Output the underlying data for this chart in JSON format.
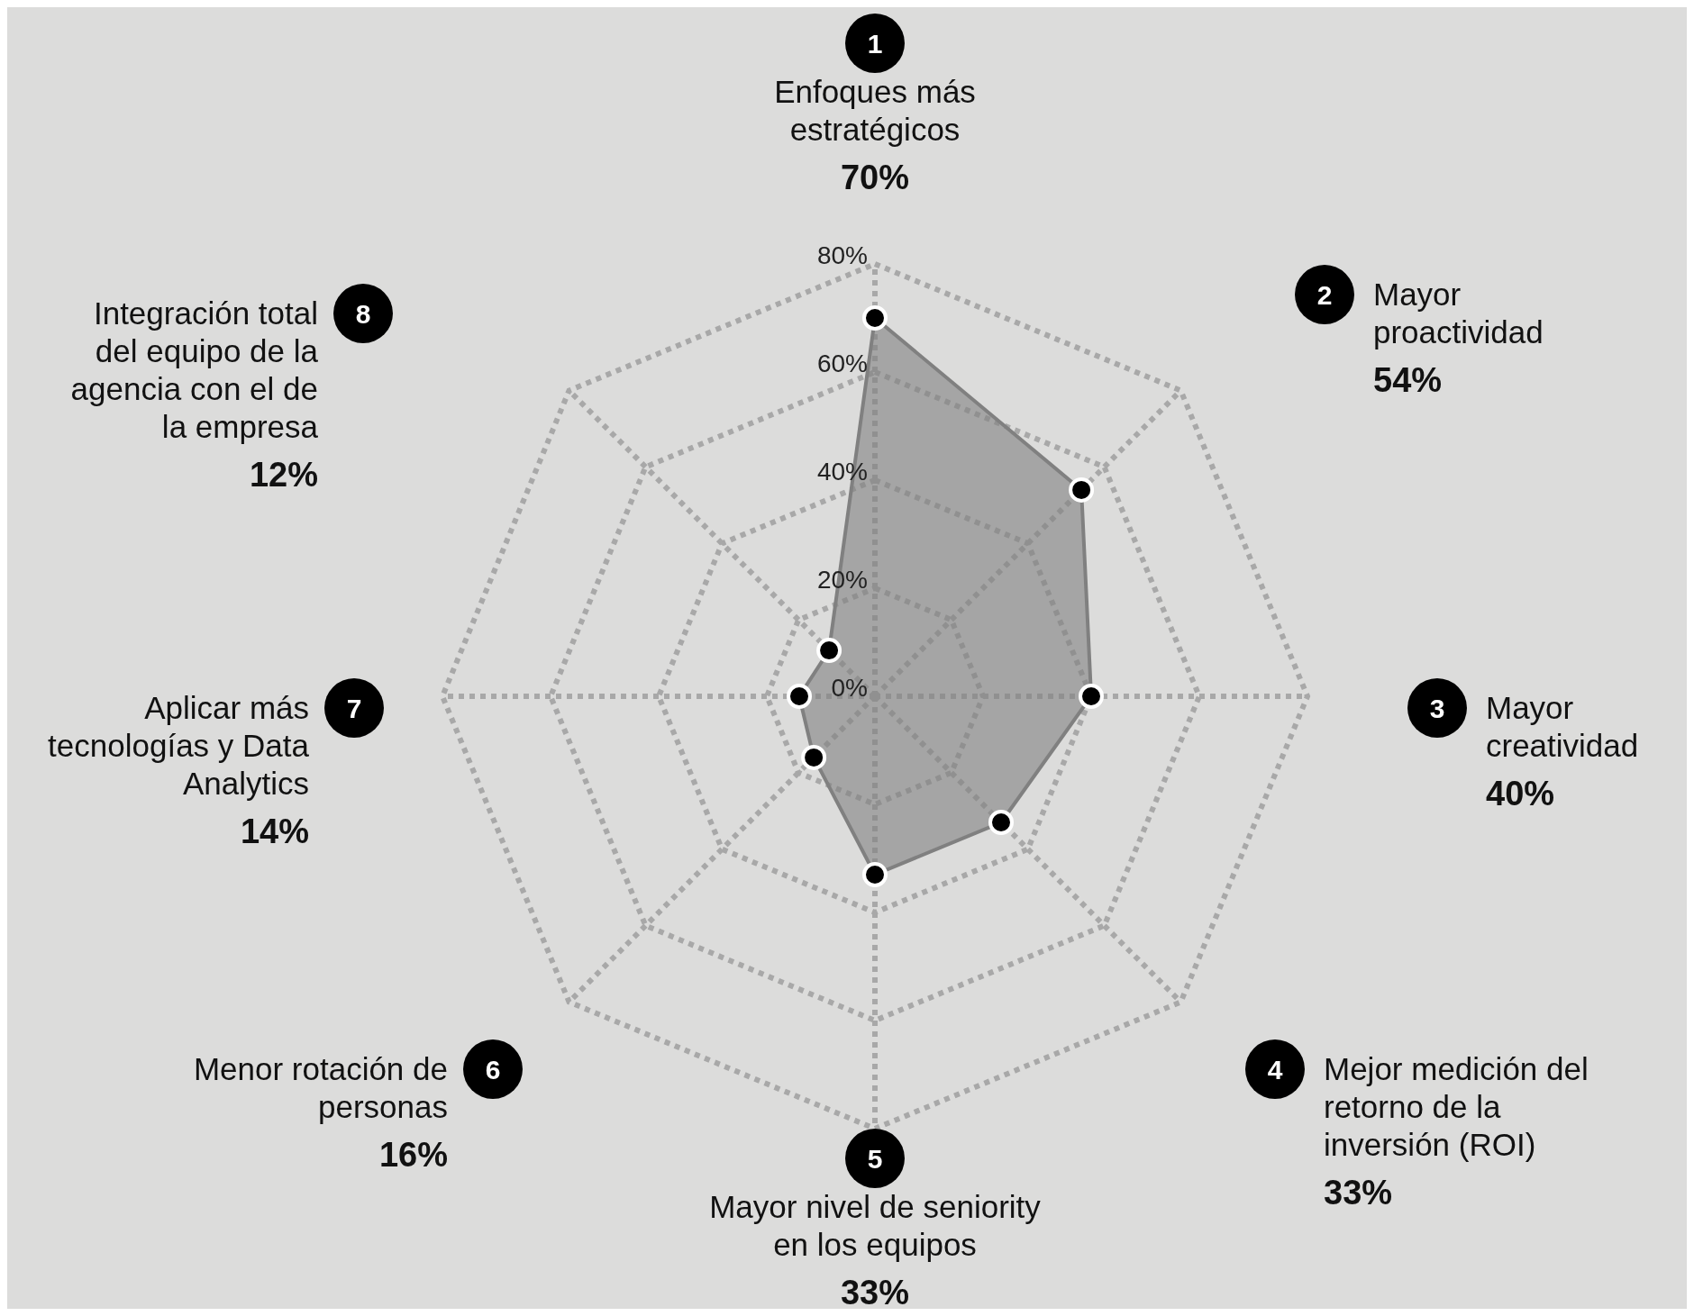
{
  "chart_data": {
    "type": "radar",
    "categories": [
      "Enfoques más estratégicos",
      "Mayor proactividad",
      "Mayor creatividad",
      "Mejor medición del retorno de la inversión (ROI)",
      "Mayor nivel de seniority en los equipos",
      "Menor rotación de personas",
      "Aplicar más tecnologías y Data Analytics",
      "Integración total del equipo de la agencia con el de la empresa"
    ],
    "series": [
      {
        "color": "#808080",
        "values": [
          70,
          54,
          40,
          33,
          33,
          16,
          14,
          12
        ]
      }
    ],
    "value_labels": [
      "70%",
      "54%",
      "40%",
      "33%",
      "33%",
      "16%",
      "14%",
      "12%"
    ],
    "annotations": [
      "1",
      "2",
      "3",
      "4",
      "5",
      "6",
      "7",
      "8"
    ],
    "ylim": [
      0,
      80
    ],
    "yticks": [
      {
        "value": 0,
        "label": "0%"
      },
      {
        "value": 20,
        "label": "20%"
      },
      {
        "value": 40,
        "label": "40%"
      },
      {
        "value": 60,
        "label": "60%"
      },
      {
        "value": 80,
        "label": "80%"
      }
    ],
    "grid": true,
    "marker": "circle"
  }
}
